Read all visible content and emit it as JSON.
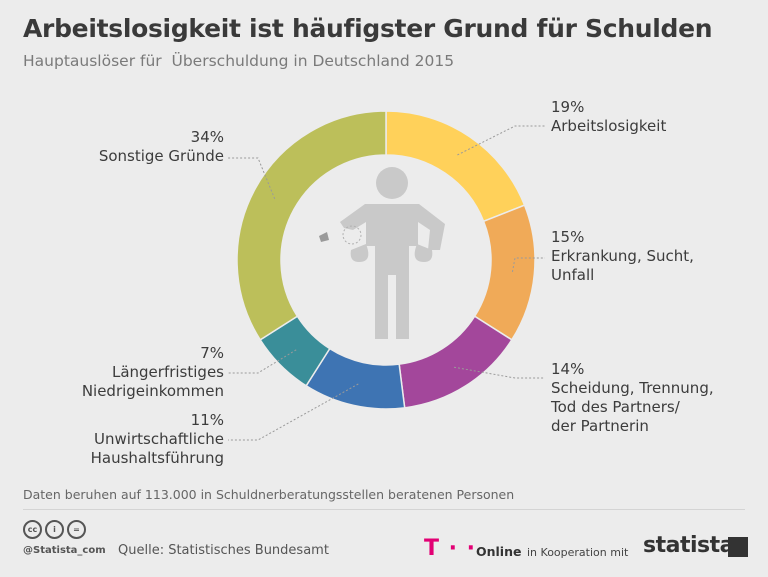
{
  "title": "Arbeitslosigkeit ist häufigster Grund für Schulden",
  "subtitle": "Hauptauslöser für  Überschuldung in Deutschland 2015",
  "chart_data": {
    "type": "pie",
    "variant": "donut",
    "title": "Arbeitslosigkeit ist häufigster Grund für Schulden",
    "subtitle": "Hauptauslöser für  Überschuldung in Deutschland 2015",
    "unit": "%",
    "slices": [
      {
        "label": "Arbeitslosigkeit",
        "value": 19,
        "display": "19%",
        "color": "#ffd15a"
      },
      {
        "label": "Erkrankung, Sucht, Unfall",
        "value": 15,
        "display": "15%",
        "color": "#f0aa58"
      },
      {
        "label": "Scheidung, Trennung, Tod des Partners/ der Partnerin",
        "value": 14,
        "display": "14%",
        "color": "#a3479b"
      },
      {
        "label": "Unwirtschaftliche Haushaltsführung",
        "value": 11,
        "display": "11%",
        "color": "#3e74b3"
      },
      {
        "label": "Längerfristiges Niedrigeinkommen",
        "value": 7,
        "display": "7%",
        "color": "#3a8e99"
      },
      {
        "label": "Sonstige Gründe",
        "value": 34,
        "display": "34%",
        "color": "#bcbf5a"
      }
    ]
  },
  "labels": {
    "arbeitslosigkeit": {
      "pct": "19%",
      "name": "Arbeitslosigkeit"
    },
    "erkrankung": {
      "pct": "15%",
      "name": "Erkrankung, Sucht,\nUnfall"
    },
    "scheidung": {
      "pct": "14%",
      "name": "Scheidung, Trennung,\nTod des Partners/\nder Partnerin"
    },
    "unwirtschaftlich": {
      "pct": "11%",
      "name": "Unwirtschaftliche\nHaushaltsführung"
    },
    "niedrigeinkommen": {
      "pct": "7%",
      "name": "Längerfristiges\nNiedrigeinkommen"
    },
    "sonstige": {
      "pct": "34%",
      "name": "Sonstige Gründe"
    }
  },
  "footer": {
    "note": "Daten beruhen auf 113.000 in Schuldnerberatungsstellen beratenen Personen",
    "handle": "@Statista_com",
    "source": "Quelle: Statistisches Bundesamt",
    "tlogo": "T · ·",
    "tonline": "Online",
    "cooperation": "in Kooperation mit",
    "brand": "statista",
    "cc_icons": [
      "cc",
      "i",
      "="
    ]
  }
}
